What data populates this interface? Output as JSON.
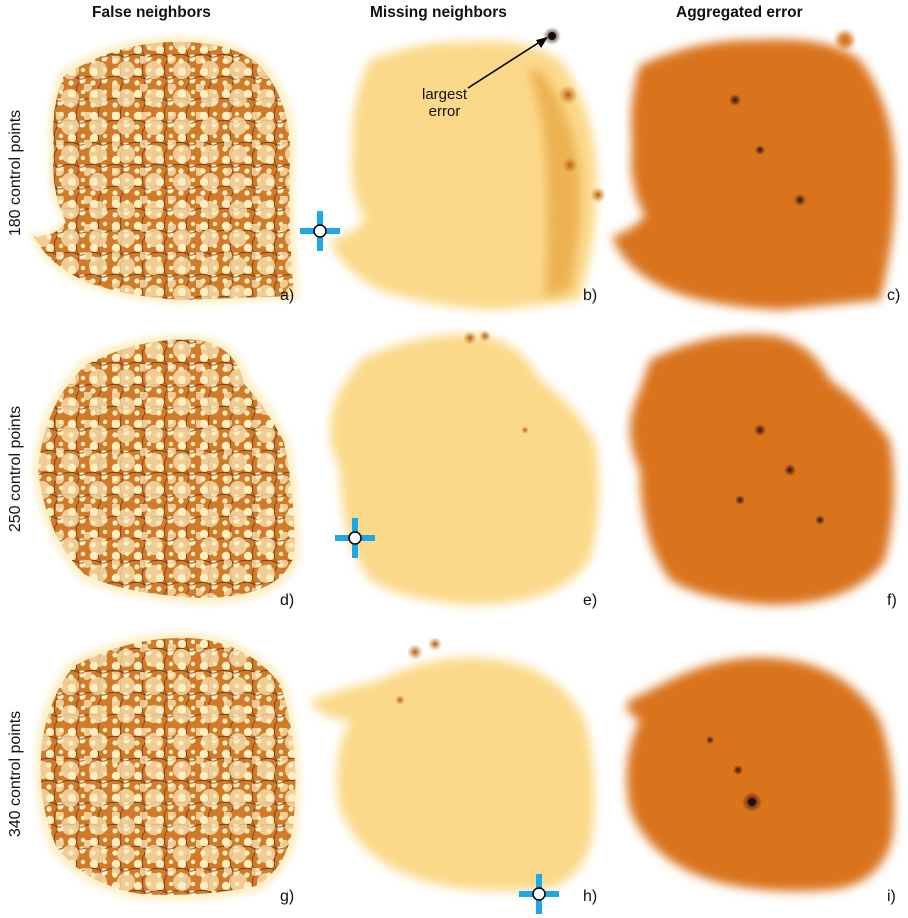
{
  "columns": [
    "False neighbors",
    "Missing neighbors",
    "Aggregated error"
  ],
  "rows": [
    "180 control points",
    "250 control points",
    "340  control points"
  ],
  "panel_letters": [
    "a)",
    "b)",
    "c)",
    "d)",
    "e)",
    "f)",
    "g)",
    "h)",
    "i)"
  ],
  "annotation": {
    "line1": "largest",
    "line2": "error"
  },
  "colors": {
    "false_fill": "#fdeec0",
    "false_network": "#c8661a",
    "false_network_dark": "#5a2a0a",
    "missing_fill": "#fbd98a",
    "missing_hot": "#d4861c",
    "aggregated_fill": "#d9731f",
    "aggregated_dark": "#4a1a1a",
    "marker_cross": "#1ea8e6",
    "arrow": "#000000"
  },
  "icons": [
    "crosshair-marker-icon",
    "arrow-icon"
  ]
}
